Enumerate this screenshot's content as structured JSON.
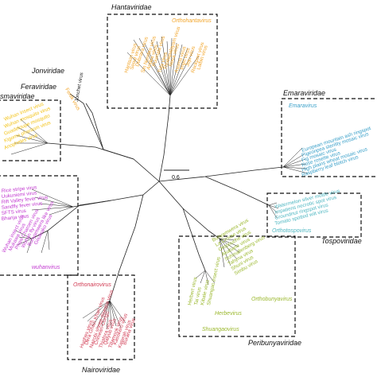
{
  "colors": {
    "hanta": "#f2a52a",
    "mypo": "#f3c318",
    "emara": "#3aa0c9",
    "tospo": "#4fb7c2",
    "phenui": "#c23ad0",
    "nairo": "#d13a52",
    "peribunya": "#9bb82e",
    "line": "#222222"
  },
  "families": {
    "hantaviridae": "Hantaviridae",
    "jonviridae": "Jonviridae",
    "feraviridae": "Feraviridae",
    "mypoviridae_fragment": "smaviridae",
    "emaraviridae": "Emaraviridae",
    "tospoviridae": "Tospoviridae",
    "nairoviridae": "Nairoviridae",
    "peribunyaviridae": "Peribunyaviridae"
  },
  "genera": {
    "orthohantavirus": "Orthohantavirus",
    "emaravirus": "Emaravirus",
    "orthotospovirus": "Orthotospovirus",
    "orthonairovirus": "Orthonairovirus",
    "herbevirus": "Herbevirus",
    "orthobunyavirus": "Orthobunyavirus",
    "shuangaovirus": "Shuangaovirus",
    "wuhanvirus": "wuhanvirus"
  },
  "scale_bar": "0.6",
  "leaves": {
    "jonchet": "Jonchet virus",
    "ferak": "Ferak virus",
    "mypo": [
      "Wuhan insect virus",
      "Wuhan mosquito virus",
      "Guadeloupe mosquito",
      "Kigoma phantom virus",
      "Anopheles virus"
    ],
    "emara": [
      "European mountain ash ringspot",
      "Pigeonpea sterility mosaic virus",
      "Fig mosaic virus",
      "Rose rosette virus",
      "High plains wheat mosaic virus",
      "Raspberry leaf blotch virus"
    ],
    "tospo": [
      "Watermelon silver mottle virus",
      "Impatiens necrotic spot virus",
      "Groundnut ringspot virus",
      "Tomato spotted wilt virus"
    ],
    "phenui": [
      "Rice stripe virus",
      "Uukuniemi virus",
      "Rift Valley fever virus",
      "Sandfly fever virus",
      "SFTS virus",
      "Bhanja virus",
      "Wuhan insect virus",
      "Mukawa virus",
      "Phasi Charoen virus",
      "Wuhan fly virus",
      "Bunyamwera like virus",
      "Gouleako virus"
    ],
    "hanta": [
      "Hantaan virus",
      "Seoul virus",
      "Dobrava virus",
      "Sin Nombre virus",
      "Andes virus",
      "Puumala virus",
      "Tula virus",
      "Thottapalayam virus",
      "Nova virus",
      "Asama virus",
      "Imjin virus",
      "Jeju virus",
      "Rockport virus",
      "Laibin virus"
    ],
    "nairo": [
      "Hughes virus",
      "Dera Ghazi Khan virus",
      "Nairobi sheep disease virus",
      "Crimean-Congo",
      "Thiafora virus",
      "Qalyub virus",
      "Tillamook virus",
      "Kasokero virus",
      "Keterah virus",
      "Burana virus"
    ],
    "peribunya": [
      "Bunyamwera virus",
      "La Crosse virus",
      "Oropouche virus",
      "Akabane virus",
      "Schmallenberg virus",
      "Tahyna virus",
      "Shuni virus",
      "Simbu virus",
      "Herbert virus",
      "Tai virus",
      "Kibale virus",
      "Shuangao insect virus"
    ]
  }
}
